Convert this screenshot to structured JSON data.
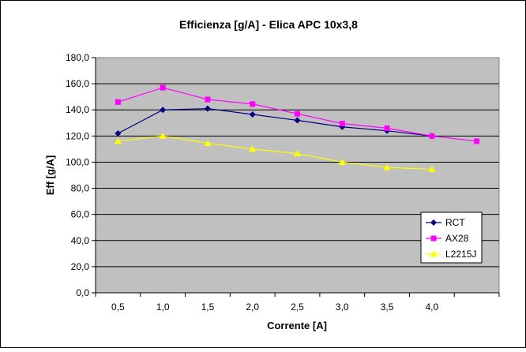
{
  "chart_data": {
    "type": "line",
    "title": "Efficienza [g/A] - Elica APC 10x3,8",
    "xlabel": "Corrente [A]",
    "ylabel": "Eff [g/A]",
    "categories": [
      "0,5",
      "1,0",
      "1,5",
      "2,0",
      "2,5",
      "3,0",
      "3,5",
      "4,0",
      ""
    ],
    "yticks": [
      "0,0",
      "20,0",
      "40,0",
      "60,0",
      "80,0",
      "100,0",
      "120,0",
      "140,0",
      "160,0",
      "180,0"
    ],
    "ylim": [
      0,
      180
    ],
    "grid": true,
    "legend_position": "right",
    "plot_background": "#c0c0c0",
    "series": [
      {
        "name": "RCT",
        "color": "#000080",
        "marker": "diamond",
        "values": [
          122,
          140,
          141,
          136.5,
          132,
          127,
          124,
          120,
          null
        ]
      },
      {
        "name": "AX28",
        "color": "#ff00ff",
        "marker": "square",
        "values": [
          146,
          157,
          148,
          144.5,
          137,
          129.5,
          126,
          120,
          116
        ]
      },
      {
        "name": "L2215J",
        "color": "#ffff00",
        "marker": "triangle",
        "values": [
          116,
          120,
          114.5,
          110,
          106.5,
          100,
          96,
          94.5,
          null
        ]
      }
    ]
  }
}
